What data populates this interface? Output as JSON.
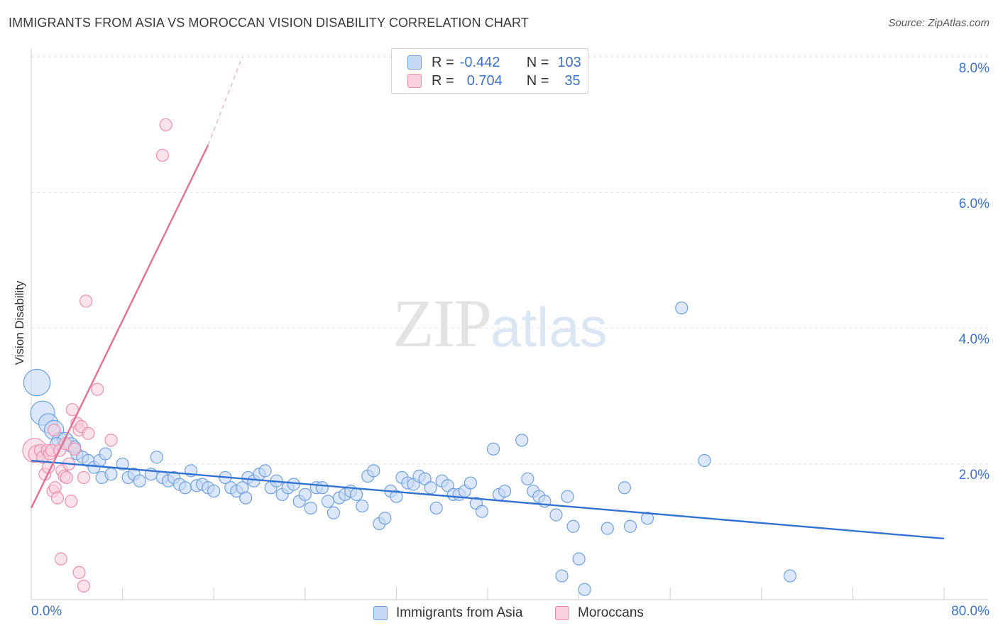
{
  "title": "IMMIGRANTS FROM ASIA VS MOROCCAN VISION DISABILITY CORRELATION CHART",
  "source": "Source: ZipAtlas.com",
  "watermark": {
    "zip": "ZIP",
    "atlas": "atlas"
  },
  "legend": {
    "rows": [
      {
        "r_label": "R =",
        "r_value": "-0.442",
        "n_label": "N =",
        "n_value": "103",
        "color": "blue"
      },
      {
        "r_label": "R =",
        "r_value": "0.704",
        "n_label": "N =",
        "n_value": "35",
        "color": "pink"
      }
    ]
  },
  "bottom_legend": [
    "Immigrants from Asia",
    "Moroccans"
  ],
  "colors": {
    "blue_fill": "#c5d9f5",
    "blue_stroke": "#6fa0e0",
    "blue_line": "#3272d0",
    "pink_fill": "#f9d0de",
    "pink_stroke": "#ec8fb0",
    "pink_line": "#e4708f",
    "accent_text": "#3d72c8",
    "grid": "#e2e2e2"
  },
  "chart_data": {
    "type": "scatter",
    "title": "IMMIGRANTS FROM ASIA VS MOROCCAN VISION DISABILITY CORRELATION CHART",
    "xlabel": "",
    "ylabel": "Vision Disability",
    "xlim": [
      0,
      80
    ],
    "ylim": [
      0,
      8
    ],
    "x_tick_labels": [
      "0.0%",
      "80.0%"
    ],
    "y_ticks": [
      2,
      4,
      6,
      8
    ],
    "y_tick_labels": [
      "2.0%",
      "4.0%",
      "6.0%",
      "8.0%"
    ],
    "grid": true,
    "series": [
      {
        "name": "Immigrants from Asia",
        "color": "blue",
        "trend": {
          "x": [
            0,
            80
          ],
          "y": [
            2.05,
            0.9
          ]
        },
        "points": [
          {
            "x": 0.5,
            "y": 3.2,
            "s": 2.2
          },
          {
            "x": 1.0,
            "y": 2.75,
            "s": 2.0
          },
          {
            "x": 1.5,
            "y": 2.6,
            "s": 1.6
          },
          {
            "x": 2.0,
            "y": 2.5,
            "s": 1.6
          },
          {
            "x": 2.5,
            "y": 2.35,
            "s": 1.3
          },
          {
            "x": 3.0,
            "y": 2.35,
            "s": 1.3
          },
          {
            "x": 3.5,
            "y": 2.28,
            "s": 1.2
          },
          {
            "x": 4.0,
            "y": 2.15
          },
          {
            "x": 4.5,
            "y": 2.1
          },
          {
            "x": 5.0,
            "y": 2.05
          },
          {
            "x": 5.5,
            "y": 1.95
          },
          {
            "x": 6.0,
            "y": 2.05
          },
          {
            "x": 6.5,
            "y": 2.15
          },
          {
            "x": 6.2,
            "y": 1.8
          },
          {
            "x": 7.0,
            "y": 1.85
          },
          {
            "x": 8.0,
            "y": 2.0
          },
          {
            "x": 8.5,
            "y": 1.8
          },
          {
            "x": 9.0,
            "y": 1.85
          },
          {
            "x": 9.5,
            "y": 1.75
          },
          {
            "x": 10.5,
            "y": 1.85
          },
          {
            "x": 11.0,
            "y": 2.1
          },
          {
            "x": 11.5,
            "y": 1.8
          },
          {
            "x": 12.0,
            "y": 1.75
          },
          {
            "x": 12.5,
            "y": 1.8
          },
          {
            "x": 13.0,
            "y": 1.7
          },
          {
            "x": 13.5,
            "y": 1.65
          },
          {
            "x": 14.0,
            "y": 1.9
          },
          {
            "x": 14.5,
            "y": 1.68
          },
          {
            "x": 15.0,
            "y": 1.7
          },
          {
            "x": 15.5,
            "y": 1.65
          },
          {
            "x": 16.0,
            "y": 1.6
          },
          {
            "x": 17.0,
            "y": 1.8
          },
          {
            "x": 17.5,
            "y": 1.65
          },
          {
            "x": 18.0,
            "y": 1.6
          },
          {
            "x": 18.5,
            "y": 1.65
          },
          {
            "x": 19.0,
            "y": 1.8
          },
          {
            "x": 19.5,
            "y": 1.75
          },
          {
            "x": 20.0,
            "y": 1.85
          },
          {
            "x": 20.5,
            "y": 1.9
          },
          {
            "x": 21.0,
            "y": 1.65
          },
          {
            "x": 21.5,
            "y": 1.75
          },
          {
            "x": 22.0,
            "y": 1.55
          },
          {
            "x": 22.5,
            "y": 1.65
          },
          {
            "x": 23.0,
            "y": 1.7
          },
          {
            "x": 23.5,
            "y": 1.45
          },
          {
            "x": 24.0,
            "y": 1.55
          },
          {
            "x": 24.5,
            "y": 1.35
          },
          {
            "x": 25.0,
            "y": 1.65
          },
          {
            "x": 25.5,
            "y": 1.65
          },
          {
            "x": 26.0,
            "y": 1.45
          },
          {
            "x": 26.5,
            "y": 1.28
          },
          {
            "x": 27.0,
            "y": 1.5
          },
          {
            "x": 27.5,
            "y": 1.55
          },
          {
            "x": 28.0,
            "y": 1.6
          },
          {
            "x": 28.5,
            "y": 1.55
          },
          {
            "x": 29.0,
            "y": 1.38
          },
          {
            "x": 29.5,
            "y": 1.82
          },
          {
            "x": 30.0,
            "y": 1.9
          },
          {
            "x": 30.5,
            "y": 1.12
          },
          {
            "x": 31.0,
            "y": 1.2
          },
          {
            "x": 31.5,
            "y": 1.6
          },
          {
            "x": 32.0,
            "y": 1.52
          },
          {
            "x": 32.5,
            "y": 1.8
          },
          {
            "x": 33.0,
            "y": 1.72
          },
          {
            "x": 33.5,
            "y": 1.7
          },
          {
            "x": 34.0,
            "y": 1.82
          },
          {
            "x": 34.5,
            "y": 1.78
          },
          {
            "x": 35.0,
            "y": 1.65
          },
          {
            "x": 35.5,
            "y": 1.35
          },
          {
            "x": 36.0,
            "y": 1.75
          },
          {
            "x": 36.5,
            "y": 1.68
          },
          {
            "x": 37.0,
            "y": 1.55
          },
          {
            "x": 37.5,
            "y": 1.55
          },
          {
            "x": 38.0,
            "y": 1.6
          },
          {
            "x": 38.5,
            "y": 1.72
          },
          {
            "x": 39.0,
            "y": 1.42
          },
          {
            "x": 39.5,
            "y": 1.3
          },
          {
            "x": 40.5,
            "y": 2.22
          },
          {
            "x": 41.0,
            "y": 1.55
          },
          {
            "x": 41.5,
            "y": 1.6
          },
          {
            "x": 43.0,
            "y": 2.35
          },
          {
            "x": 43.5,
            "y": 1.78
          },
          {
            "x": 44.0,
            "y": 1.6
          },
          {
            "x": 44.5,
            "y": 1.52
          },
          {
            "x": 45.0,
            "y": 1.45
          },
          {
            "x": 46.0,
            "y": 1.25
          },
          {
            "x": 47.0,
            "y": 1.52
          },
          {
            "x": 47.5,
            "y": 1.08
          },
          {
            "x": 48.0,
            "y": 0.6
          },
          {
            "x": 46.5,
            "y": 0.35
          },
          {
            "x": 48.5,
            "y": 0.15
          },
          {
            "x": 50.5,
            "y": 1.05
          },
          {
            "x": 52.5,
            "y": 1.08
          },
          {
            "x": 52.0,
            "y": 1.65
          },
          {
            "x": 54.0,
            "y": 1.2
          },
          {
            "x": 57.0,
            "y": 4.3
          },
          {
            "x": 59.0,
            "y": 2.05
          },
          {
            "x": 66.5,
            "y": 0.35
          },
          {
            "x": 2.2,
            "y": 2.3
          },
          {
            "x": 3.8,
            "y": 2.25
          },
          {
            "x": 18.8,
            "y": 1.5
          }
        ]
      },
      {
        "name": "Moroccans",
        "color": "pink",
        "trend": {
          "x": [
            0,
            15.5
          ],
          "y": [
            1.35,
            6.7
          ]
        },
        "trend_dashed": {
          "x": [
            15.5,
            18.5
          ],
          "y": [
            6.7,
            8.0
          ]
        },
        "points": [
          {
            "x": 0.3,
            "y": 2.2,
            "s": 2.0
          },
          {
            "x": 0.5,
            "y": 2.15,
            "s": 1.4
          },
          {
            "x": 0.8,
            "y": 2.2
          },
          {
            "x": 1.0,
            "y": 2.1
          },
          {
            "x": 1.2,
            "y": 1.85
          },
          {
            "x": 1.4,
            "y": 2.2
          },
          {
            "x": 1.6,
            "y": 2.15
          },
          {
            "x": 1.8,
            "y": 2.2
          },
          {
            "x": 1.5,
            "y": 1.95
          },
          {
            "x": 1.9,
            "y": 1.6
          },
          {
            "x": 2.1,
            "y": 1.65
          },
          {
            "x": 2.3,
            "y": 1.5
          },
          {
            "x": 2.5,
            "y": 2.2
          },
          {
            "x": 2.7,
            "y": 1.9
          },
          {
            "x": 2.9,
            "y": 1.82
          },
          {
            "x": 3.1,
            "y": 1.8
          },
          {
            "x": 3.3,
            "y": 2.0
          },
          {
            "x": 3.5,
            "y": 1.45
          },
          {
            "x": 3.0,
            "y": 2.3
          },
          {
            "x": 3.8,
            "y": 2.22
          },
          {
            "x": 4.0,
            "y": 2.6
          },
          {
            "x": 4.2,
            "y": 2.5
          },
          {
            "x": 4.4,
            "y": 2.55
          },
          {
            "x": 4.6,
            "y": 1.8
          },
          {
            "x": 3.6,
            "y": 2.8
          },
          {
            "x": 5.0,
            "y": 2.45
          },
          {
            "x": 2.0,
            "y": 2.5
          },
          {
            "x": 4.8,
            "y": 4.4
          },
          {
            "x": 5.8,
            "y": 3.1
          },
          {
            "x": 7.0,
            "y": 2.35
          },
          {
            "x": 11.5,
            "y": 6.55
          },
          {
            "x": 11.8,
            "y": 7.0
          },
          {
            "x": 2.6,
            "y": 0.6
          },
          {
            "x": 4.2,
            "y": 0.4
          },
          {
            "x": 4.6,
            "y": 0.2
          }
        ]
      }
    ]
  }
}
